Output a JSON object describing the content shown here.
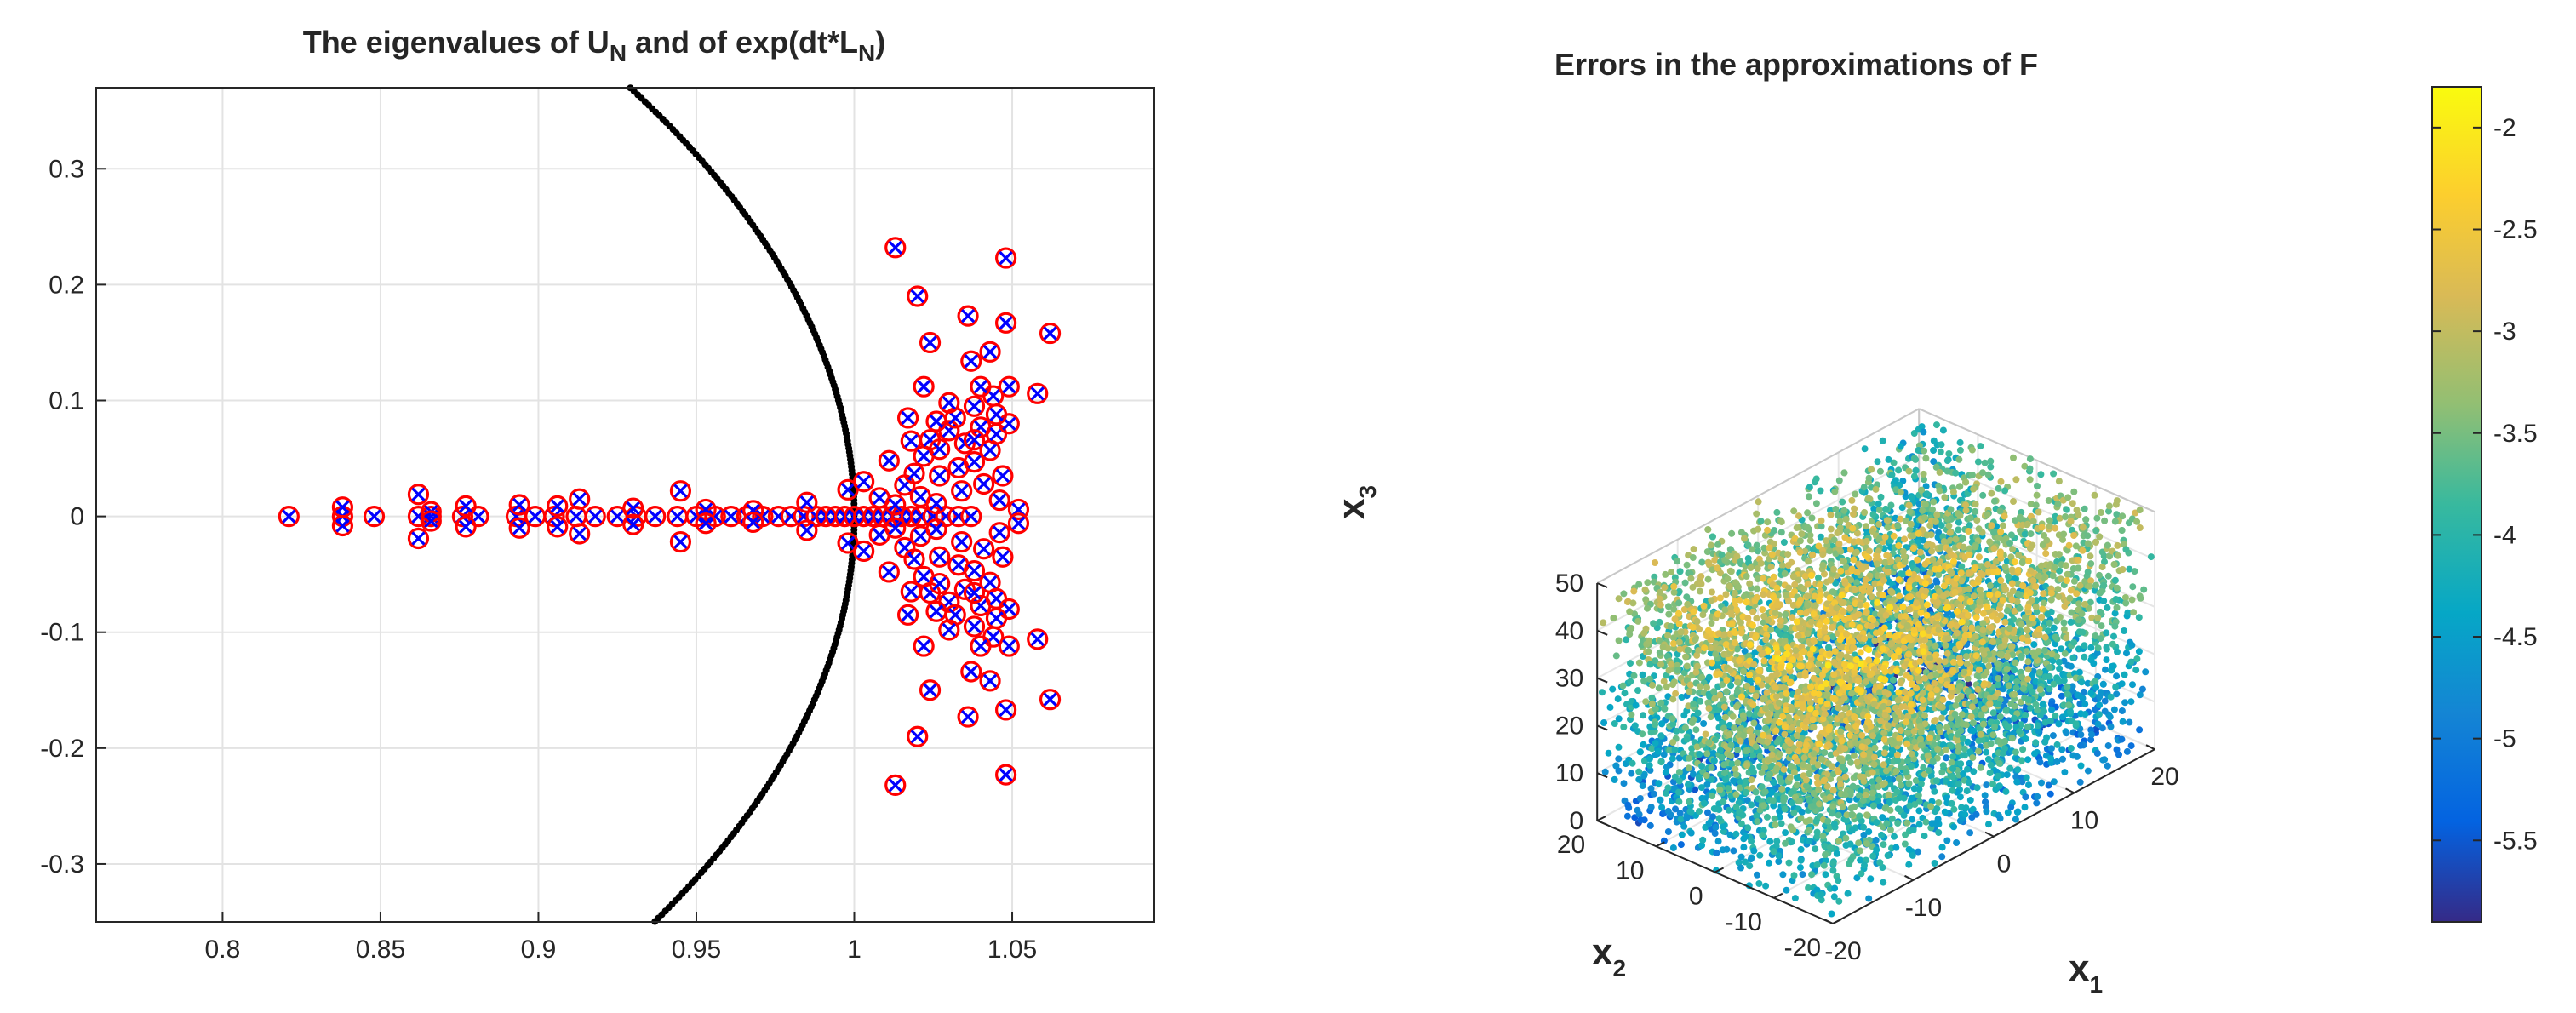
{
  "chart_data": [
    {
      "type": "scatter",
      "title": "The eigenvalues of U",
      "title_sub_1": "N",
      "title_mid": " and of exp(dt*L",
      "title_sub_2": "N",
      "title_end": ")",
      "xlim": [
        0.76,
        1.095
      ],
      "ylim": [
        -0.35,
        0.37
      ],
      "xticks": [
        0.8,
        0.85,
        0.9,
        0.95,
        1,
        1.05
      ],
      "xtick_labels": [
        "0.8",
        "0.85",
        "0.9",
        "0.95",
        "1",
        "1.05"
      ],
      "yticks": [
        -0.3,
        -0.2,
        -0.1,
        0,
        0.1,
        0.2,
        0.3
      ],
      "ytick_labels": [
        "-0.3",
        "-0.2",
        "-0.1",
        "0",
        "0.1",
        "0.2",
        "0.3"
      ],
      "grid": true,
      "unit_circle": {
        "center": [
          0,
          0
        ],
        "radius": 1,
        "color": "#000000"
      },
      "series": [
        {
          "marker": "o",
          "color": "#ff0000",
          "points_real_axis": [
            0.821,
            0.838,
            0.848,
            0.862,
            0.866,
            0.876,
            0.881,
            0.893,
            0.899,
            0.905,
            0.912,
            0.918,
            0.925,
            0.931,
            0.937,
            0.944,
            0.95,
            0.956,
            0.961,
            0.966,
            0.971,
            0.976,
            0.98,
            0.984,
            0.988,
            0.991,
            0.994,
            0.997,
            1.0,
            1.003,
            1.006,
            1.009,
            1.012,
            1.015,
            1.018,
            1.021,
            1.025,
            1.029,
            1.033,
            1.037
          ],
          "points_conjugate_pairs": [
            [
              0.838,
              0.008
            ],
            [
              0.862,
              0.019
            ],
            [
              0.866,
              0.004
            ],
            [
              0.877,
              0.009
            ],
            [
              0.894,
              0.01
            ],
            [
              0.906,
              0.009
            ],
            [
              0.913,
              0.015
            ],
            [
              0.93,
              0.007
            ],
            [
              0.945,
              0.022
            ],
            [
              0.953,
              0.006
            ],
            [
              0.968,
              0.005
            ],
            [
              0.985,
              0.012
            ],
            [
              0.998,
              0.023
            ],
            [
              1.003,
              0.03
            ],
            [
              1.008,
              0.016
            ],
            [
              1.011,
              0.048
            ],
            [
              1.016,
              0.027
            ],
            [
              1.019,
              0.037
            ],
            [
              1.022,
              0.052
            ],
            [
              1.024,
              0.066
            ],
            [
              1.027,
              0.058
            ],
            [
              1.03,
              0.074
            ],
            [
              1.033,
              0.042
            ],
            [
              1.035,
              0.063
            ],
            [
              1.038,
              0.047
            ],
            [
              1.04,
              0.077
            ],
            [
              1.043,
              0.057
            ],
            [
              1.045,
              0.071
            ],
            [
              1.047,
              0.035
            ],
            [
              1.049,
              0.08
            ],
            [
              1.026,
              0.082
            ],
            [
              1.032,
              0.085
            ],
            [
              1.038,
              0.095
            ],
            [
              1.044,
              0.104
            ],
            [
              1.04,
              0.112
            ],
            [
              1.022,
              0.112
            ],
            [
              1.017,
              0.085
            ],
            [
              1.03,
              0.098
            ],
            [
              1.037,
              0.134
            ],
            [
              1.043,
              0.142
            ],
            [
              1.024,
              0.15
            ],
            [
              1.049,
              0.112
            ],
            [
              1.058,
              0.106
            ],
            [
              1.048,
              0.167
            ],
            [
              1.036,
              0.173
            ],
            [
              1.02,
              0.19
            ],
            [
              1.013,
              0.232
            ],
            [
              1.048,
              0.223
            ],
            [
              1.062,
              0.158
            ],
            [
              1.027,
              0.035
            ],
            [
              1.034,
              0.022
            ],
            [
              1.041,
              0.028
            ],
            [
              1.021,
              0.017
            ],
            [
              1.013,
              0.01
            ],
            [
              1.046,
              0.014
            ],
            [
              1.026,
              0.011
            ],
            [
              1.052,
              0.006
            ],
            [
              1.018,
              0.065
            ],
            [
              1.038,
              0.066
            ],
            [
              1.045,
              0.088
            ]
          ]
        },
        {
          "marker": "x",
          "color": "#0000ff",
          "same_points": true
        },
        {
          "marker": ".",
          "color": "#000000",
          "curve": "unit circle"
        }
      ]
    },
    {
      "type": "scatter3d",
      "title": "Errors in the approximations of F",
      "xlabel": "x",
      "xlabel_sub": "1",
      "ylabel": "x",
      "ylabel_sub": "2",
      "zlabel": "x",
      "zlabel_sub": "3",
      "xlim": [
        -20,
        20
      ],
      "ylim": [
        -20,
        20
      ],
      "zlim": [
        0,
        50
      ],
      "xtick_labels": [
        "-20",
        "-10",
        "0",
        "10",
        "20"
      ],
      "ytick_labels": [
        "-20",
        "-10",
        "0",
        "10",
        "20"
      ],
      "ztick_labels": [
        "0",
        "10",
        "20",
        "30",
        "40",
        "50"
      ],
      "colorbar": {
        "colormap": "parula",
        "range": [
          -5.9,
          -1.8
        ],
        "tick_labels": [
          "-2",
          "-2.5",
          "-3",
          "-3.5",
          "-4",
          "-4.5",
          "-5",
          "-5.5"
        ],
        "ticks": [
          -2,
          -2.5,
          -3,
          -3.5,
          -4,
          -4.5,
          -5,
          -5.5
        ]
      },
      "grid": true,
      "point_cloud": {
        "count": 7000,
        "color_value_range": [
          -5.9,
          -1.8
        ]
      }
    }
  ]
}
